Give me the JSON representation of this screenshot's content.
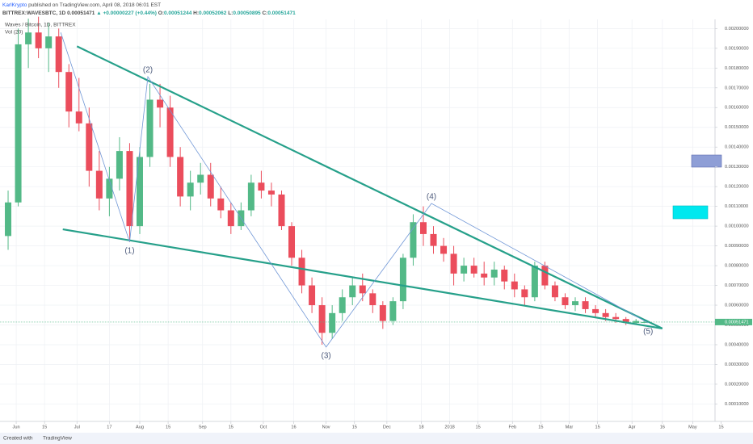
{
  "header": {
    "author": "KarlKrypto",
    "published": "published on TradingView.com, April 08, 2018 06:01 EST",
    "symbol": "BITTREX:WAVESBTC, 1D",
    "change": "▲ +0.00000227 (+0.44%)",
    "ohlc_labels": [
      "O:",
      "H:",
      "L:",
      "C:"
    ]
  },
  "legend": {
    "title": "Waves / Bitcoin, 1D, BITTREX",
    "volume": "Vol (20)"
  },
  "footer": {
    "created": "Created with",
    "brand": "TradingView"
  },
  "chart_data": {
    "type": "candlestick",
    "up_color": "#53b987",
    "down_color": "#eb4d5c",
    "grid": true,
    "last_price": 0.00051471,
    "xlim": [
      "2017-05-24",
      "2018-05-12"
    ],
    "ylim": [
      2e-05,
      0.00203
    ],
    "xticks": [
      {
        "value": "2017-06-01",
        "label": "Jun"
      },
      {
        "value": "2017-06-15",
        "label": "15"
      },
      {
        "value": "2017-07-01",
        "label": "Jul"
      },
      {
        "value": "2017-07-17",
        "label": "17"
      },
      {
        "value": "2017-08-01",
        "label": "Aug"
      },
      {
        "value": "2017-08-15",
        "label": "15"
      },
      {
        "value": "2017-09-01",
        "label": "Sep"
      },
      {
        "value": "2017-09-15",
        "label": "15"
      },
      {
        "value": "2017-10-01",
        "label": "Oct"
      },
      {
        "value": "2017-10-16",
        "label": "16"
      },
      {
        "value": "2017-11-01",
        "label": "Nov"
      },
      {
        "value": "2017-11-15",
        "label": "15"
      },
      {
        "value": "2017-12-01",
        "label": "Dec"
      },
      {
        "value": "2017-12-18",
        "label": "18"
      },
      {
        "value": "2018-01-01",
        "label": "2018"
      },
      {
        "value": "2018-01-15",
        "label": "15"
      },
      {
        "value": "2018-02-01",
        "label": "Feb"
      },
      {
        "value": "2018-02-15",
        "label": "15"
      },
      {
        "value": "2018-03-01",
        "label": "Mar"
      },
      {
        "value": "2018-03-15",
        "label": "15"
      },
      {
        "value": "2018-04-01",
        "label": "Apr"
      },
      {
        "value": "2018-04-16",
        "label": "16"
      },
      {
        "value": "2018-05-01",
        "label": "May"
      },
      {
        "value": "2018-05-15",
        "label": "15"
      }
    ],
    "yticks": [
      {
        "value": 0.0001,
        "label": "0.00010000"
      },
      {
        "value": 0.0002,
        "label": "0.00020000"
      },
      {
        "value": 0.0003,
        "label": "0.00030000"
      },
      {
        "value": 0.0004,
        "label": "0.00040000"
      },
      {
        "value": 0.0005,
        "label": "0.00050000"
      },
      {
        "value": 0.0006,
        "label": "0.00060000"
      },
      {
        "value": 0.0007,
        "label": "0.00070000"
      },
      {
        "value": 0.0008,
        "label": "0.00080000"
      },
      {
        "value": 0.0009,
        "label": "0.00090000"
      },
      {
        "value": 0.001,
        "label": "0.00100000"
      },
      {
        "value": 0.0011,
        "label": "0.00110000"
      },
      {
        "value": 0.0012,
        "label": "0.00120000"
      },
      {
        "value": 0.0013,
        "label": "0.00130000"
      },
      {
        "value": 0.0014,
        "label": "0.00140000"
      },
      {
        "value": 0.0015,
        "label": "0.00150000"
      },
      {
        "value": 0.0016,
        "label": "0.00160000"
      },
      {
        "value": 0.0017,
        "label": "0.00170000"
      },
      {
        "value": 0.0018,
        "label": "0.00180000"
      },
      {
        "value": 0.0019,
        "label": "0.00190000"
      },
      {
        "value": 0.002,
        "label": "0.00200000"
      }
    ],
    "x": [
      "2017-05-28",
      "2017-06-02",
      "2017-06-07",
      "2017-06-12",
      "2017-06-17",
      "2017-06-22",
      "2017-06-27",
      "2017-07-02",
      "2017-07-07",
      "2017-07-12",
      "2017-07-17",
      "2017-07-22",
      "2017-07-27",
      "2017-08-01",
      "2017-08-06",
      "2017-08-11",
      "2017-08-16",
      "2017-08-21",
      "2017-08-26",
      "2017-08-31",
      "2017-09-05",
      "2017-09-10",
      "2017-09-15",
      "2017-09-20",
      "2017-09-25",
      "2017-09-30",
      "2017-10-05",
      "2017-10-10",
      "2017-10-15",
      "2017-10-20",
      "2017-10-25",
      "2017-10-30",
      "2017-11-04",
      "2017-11-09",
      "2017-11-14",
      "2017-11-19",
      "2017-11-24",
      "2017-11-29",
      "2017-12-04",
      "2017-12-09",
      "2017-12-14",
      "2017-12-19",
      "2017-12-24",
      "2017-12-29",
      "2018-01-03",
      "2018-01-08",
      "2018-01-13",
      "2018-01-18",
      "2018-01-23",
      "2018-01-28",
      "2018-02-02",
      "2018-02-07",
      "2018-02-12",
      "2018-02-17",
      "2018-02-22",
      "2018-02-27",
      "2018-03-04",
      "2018-03-09",
      "2018-03-14",
      "2018-03-19",
      "2018-03-24",
      "2018-03-29",
      "2018-04-03",
      "2018-04-07"
    ],
    "open": [
      0.00095,
      0.00112,
      0.00192,
      0.00198,
      0.0019,
      0.00196,
      0.00178,
      0.00158,
      0.00152,
      0.00128,
      0.00114,
      0.00124,
      0.00138,
      0.001,
      0.00135,
      0.00164,
      0.0016,
      0.00135,
      0.00115,
      0.00122,
      0.00126,
      0.00114,
      0.00108,
      0.001,
      0.00108,
      0.00122,
      0.00118,
      0.00116,
      0.001,
      0.00084,
      0.0007,
      0.0006,
      0.00046,
      0.00056,
      0.00064,
      0.0007,
      0.00066,
      0.0006,
      0.00052,
      0.00062,
      0.00084,
      0.00102,
      0.00096,
      0.0009,
      0.00086,
      0.00076,
      0.0008,
      0.00076,
      0.00074,
      0.00078,
      0.00072,
      0.00068,
      0.00064,
      0.0008,
      0.0007,
      0.00064,
      0.0006,
      0.00062,
      0.00058,
      0.00056,
      0.00054,
      0.00053,
      0.00051,
      0.00051244
    ],
    "high": [
      0.00118,
      0.002,
      0.00205,
      0.00206,
      0.00203,
      0.002,
      0.00182,
      0.00175,
      0.0016,
      0.00138,
      0.0013,
      0.00145,
      0.00142,
      0.0014,
      0.00172,
      0.00172,
      0.00166,
      0.0014,
      0.00128,
      0.00132,
      0.00132,
      0.0012,
      0.00112,
      0.00112,
      0.00126,
      0.00128,
      0.00122,
      0.00118,
      0.00102,
      0.00088,
      0.00074,
      0.00064,
      0.0006,
      0.00068,
      0.00074,
      0.00076,
      0.00068,
      0.00062,
      0.00064,
      0.00086,
      0.00106,
      0.0011,
      0.001,
      0.00094,
      0.0009,
      0.00084,
      0.00084,
      0.00082,
      0.00082,
      0.0008,
      0.00076,
      0.0007,
      0.00082,
      0.00082,
      0.00072,
      0.00066,
      0.00064,
      0.00064,
      0.0006,
      0.00058,
      0.00056,
      0.00054,
      0.00053,
      0.00052062
    ],
    "low": [
      0.00088,
      0.0011,
      0.0018,
      0.00185,
      0.00178,
      0.0017,
      0.0015,
      0.00148,
      0.0012,
      0.00108,
      0.00105,
      0.00118,
      0.00092,
      0.00096,
      0.0013,
      0.0015,
      0.0013,
      0.0011,
      0.00108,
      0.00116,
      0.0011,
      0.00104,
      0.00096,
      0.00098,
      0.00105,
      0.00114,
      0.0011,
      0.00098,
      0.0008,
      0.00066,
      0.00056,
      0.0004,
      0.00043,
      0.00052,
      0.0006,
      0.00062,
      0.00056,
      0.00048,
      0.0005,
      0.00058,
      0.0008,
      0.0009,
      0.00086,
      0.00082,
      0.0007,
      0.00072,
      0.00074,
      0.0007,
      0.0007,
      0.00068,
      0.00064,
      0.0006,
      0.00062,
      0.00068,
      0.00062,
      0.00058,
      0.00057,
      0.00056,
      0.00054,
      0.00052,
      0.00051,
      0.0005,
      0.000505,
      0.00050895
    ],
    "close": [
      0.00112,
      0.00192,
      0.00198,
      0.0019,
      0.00196,
      0.00178,
      0.00158,
      0.00152,
      0.00128,
      0.00114,
      0.00124,
      0.00138,
      0.001,
      0.00135,
      0.00164,
      0.0016,
      0.00135,
      0.00115,
      0.00122,
      0.00126,
      0.00114,
      0.00108,
      0.001,
      0.00108,
      0.00122,
      0.00118,
      0.00116,
      0.001,
      0.00084,
      0.0007,
      0.0006,
      0.00046,
      0.00056,
      0.00064,
      0.0007,
      0.00066,
      0.0006,
      0.00052,
      0.00062,
      0.00084,
      0.00102,
      0.00096,
      0.0009,
      0.00086,
      0.00076,
      0.0008,
      0.00076,
      0.00074,
      0.00078,
      0.00072,
      0.00068,
      0.00064,
      0.0008,
      0.0007,
      0.00064,
      0.0006,
      0.00062,
      0.00058,
      0.00056,
      0.00054,
      0.00053,
      0.00051,
      0.00052,
      0.00051471
    ],
    "trendline_color": "#26a08a",
    "trendlines": [
      {
        "x": [
          "2017-07-01",
          "2018-04-16"
        ],
        "y": [
          0.00191,
          0.000482
        ]
      },
      {
        "x": [
          "2017-06-24",
          "2018-04-16"
        ],
        "y": [
          0.000984,
          0.000482
        ]
      }
    ],
    "wave_color": "#6f96d6",
    "wave": {
      "x": [
        "2017-06-23",
        "2017-07-27",
        "2017-08-05",
        "2017-11-01",
        "2017-12-23",
        "2018-04-09"
      ],
      "y": [
        0.00198,
        0.00092,
        0.001756,
        0.000388,
        0.001115,
        0.00051
      ],
      "labels": [
        null,
        "(1)",
        "(2)",
        "(3)",
        "(4)",
        "(5)"
      ]
    }
  }
}
